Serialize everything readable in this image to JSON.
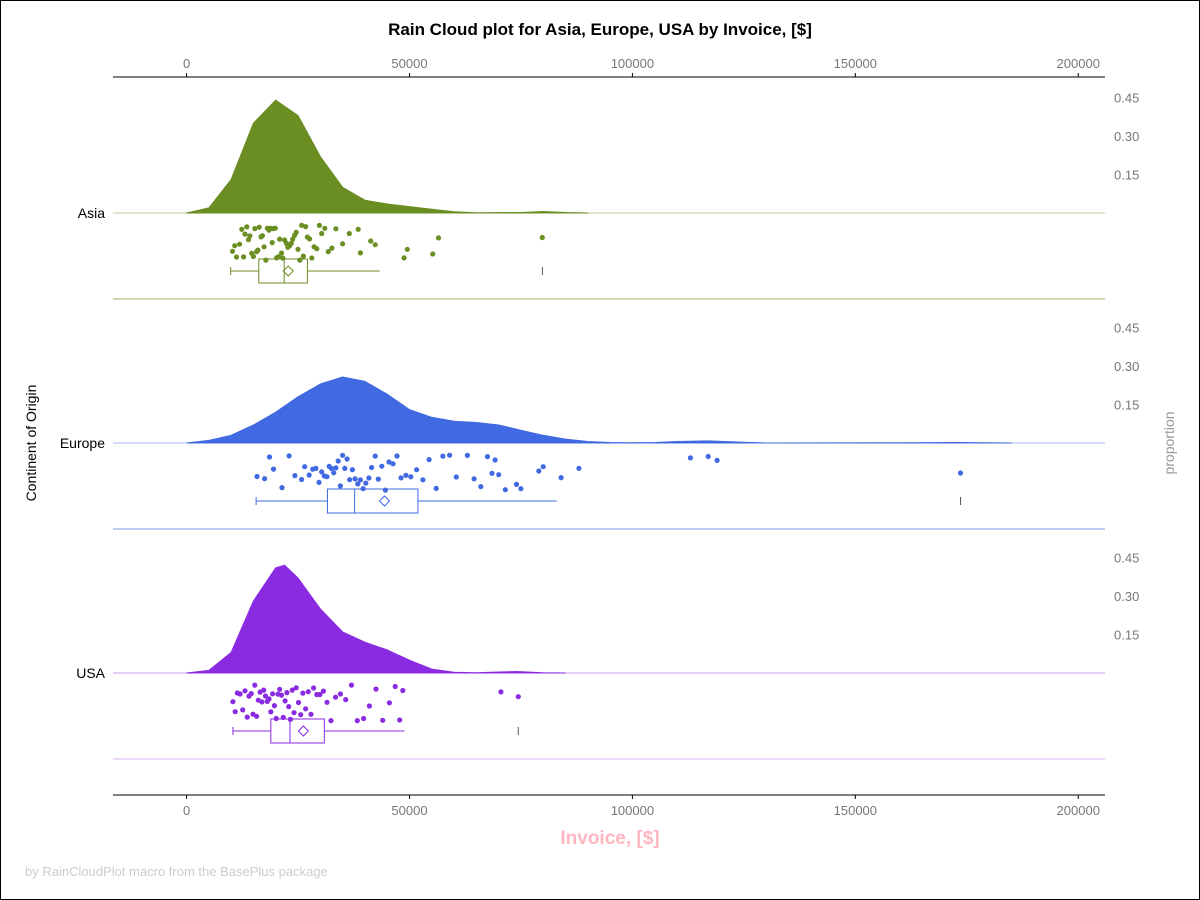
{
  "chart_data": {
    "type": "raincloud",
    "title": "Rain Cloud plot for Asia, Europe, USA by Invoice, [$]",
    "xlabel": "Invoice, [$]",
    "ylabel": "Continent of Origin",
    "y2label": "proportion",
    "footnote": "by RainCloudPlot macro from the BasePlus package",
    "xlim": [
      -16500,
      206000
    ],
    "xticks": [
      0,
      50000,
      100000,
      150000,
      200000
    ],
    "xtick_labels": [
      "0",
      "50000",
      "100000",
      "150000",
      "200000"
    ],
    "density_ticks": [
      0.15,
      0.3,
      0.45
    ],
    "density_tick_labels": [
      "0.15",
      "0.30",
      "0.45"
    ],
    "grid": false,
    "groups": [
      {
        "name": "Asia",
        "color": "#6b8e23",
        "density": [
          [
            0,
            0
          ],
          [
            5000,
            0.02
          ],
          [
            10000,
            0.13
          ],
          [
            15000,
            0.35
          ],
          [
            20000,
            0.44
          ],
          [
            25000,
            0.38
          ],
          [
            30000,
            0.22
          ],
          [
            35000,
            0.1
          ],
          [
            40000,
            0.05
          ],
          [
            45000,
            0.035
          ],
          [
            50000,
            0.025
          ],
          [
            55000,
            0.015
          ],
          [
            60000,
            0.005
          ],
          [
            65000,
            0.001
          ],
          [
            75000,
            0.002
          ],
          [
            80000,
            0.006
          ],
          [
            85000,
            0.002
          ],
          [
            90000,
            0
          ]
        ],
        "box": {
          "min": 9900,
          "q1": 16200,
          "median": 21900,
          "mean": 22800,
          "q3": 27100,
          "whisker_high": 43300,
          "outlier_mark": 79800
        },
        "points": [
          10300,
          10800,
          11200,
          11900,
          12400,
          12800,
          13100,
          13500,
          13900,
          14200,
          14600,
          15000,
          15300,
          15700,
          16000,
          16300,
          16700,
          17000,
          17400,
          17800,
          18100,
          18500,
          18800,
          19200,
          19500,
          19900,
          20200,
          20600,
          20900,
          21300,
          21600,
          22000,
          22400,
          22700,
          23100,
          23500,
          23800,
          24200,
          24600,
          25000,
          25400,
          25800,
          26200,
          26700,
          27100,
          27600,
          28100,
          28600,
          29200,
          29800,
          30300,
          31000,
          31800,
          32600,
          33500,
          35000,
          36500,
          38500,
          39000,
          41300,
          42300,
          48800,
          49500,
          55200,
          56500,
          79800
        ]
      },
      {
        "name": "Europe",
        "color": "#4169e1",
        "density": [
          [
            0,
            0
          ],
          [
            5000,
            0.01
          ],
          [
            10000,
            0.03
          ],
          [
            15000,
            0.07
          ],
          [
            20000,
            0.12
          ],
          [
            25000,
            0.18
          ],
          [
            30000,
            0.23
          ],
          [
            35000,
            0.257
          ],
          [
            40000,
            0.24
          ],
          [
            45000,
            0.19
          ],
          [
            50000,
            0.13
          ],
          [
            55000,
            0.1
          ],
          [
            60000,
            0.085
          ],
          [
            65000,
            0.08
          ],
          [
            70000,
            0.07
          ],
          [
            75000,
            0.05
          ],
          [
            80000,
            0.03
          ],
          [
            85000,
            0.015
          ],
          [
            90000,
            0.006
          ],
          [
            95000,
            0.002
          ],
          [
            100000,
            0.001
          ],
          [
            105000,
            0.002
          ],
          [
            110000,
            0.006
          ],
          [
            117000,
            0.008
          ],
          [
            125000,
            0.003
          ],
          [
            130000,
            0
          ],
          [
            160000,
            0.001
          ],
          [
            173000,
            0.002
          ],
          [
            185000,
            0
          ]
        ],
        "box": {
          "min": 15600,
          "q1": 31600,
          "median": 37700,
          "mean": 44400,
          "q3": 51900,
          "whisker_high": 83000,
          "outlier_mark": 173600
        },
        "points": [
          15800,
          17500,
          18600,
          19500,
          21400,
          23000,
          24300,
          25800,
          26500,
          27500,
          28300,
          29000,
          29700,
          30300,
          30900,
          31500,
          32000,
          32500,
          33000,
          33500,
          34000,
          34500,
          35000,
          35500,
          36000,
          36600,
          37200,
          37800,
          38400,
          39000,
          39600,
          40200,
          40900,
          41500,
          42300,
          43000,
          43800,
          44600,
          45400,
          46300,
          47200,
          48100,
          49200,
          50300,
          51600,
          53000,
          54400,
          56000,
          57500,
          59000,
          60500,
          63000,
          64500,
          66000,
          67500,
          68500,
          69200,
          70000,
          71500,
          74000,
          75000,
          79000,
          80000,
          84000,
          88000,
          113000,
          117000,
          119000,
          173600
        ]
      },
      {
        "name": "USA",
        "color": "#8a2be2",
        "density": [
          [
            0,
            0
          ],
          [
            5000,
            0.01
          ],
          [
            10000,
            0.08
          ],
          [
            15000,
            0.28
          ],
          [
            20000,
            0.41
          ],
          [
            22000,
            0.42
          ],
          [
            25000,
            0.37
          ],
          [
            30000,
            0.25
          ],
          [
            35000,
            0.16
          ],
          [
            40000,
            0.12
          ],
          [
            45000,
            0.09
          ],
          [
            50000,
            0.05
          ],
          [
            55000,
            0.015
          ],
          [
            60000,
            0.003
          ],
          [
            65000,
            0.001
          ],
          [
            70000,
            0.004
          ],
          [
            74000,
            0.006
          ],
          [
            80000,
            0.001
          ],
          [
            85000,
            0
          ]
        ],
        "box": {
          "min": 10400,
          "q1": 18900,
          "median": 23200,
          "mean": 26200,
          "q3": 30900,
          "whisker_high": 48900,
          "outlier_mark": 74400
        },
        "points": [
          10400,
          10900,
          11400,
          12000,
          12600,
          13100,
          13600,
          14000,
          14500,
          14900,
          15300,
          15700,
          16100,
          16500,
          16900,
          17300,
          17700,
          18100,
          18500,
          18900,
          19300,
          19700,
          20100,
          20500,
          20900,
          21300,
          21700,
          22100,
          22500,
          22900,
          23300,
          23700,
          24100,
          24600,
          25100,
          25600,
          26100,
          26700,
          27300,
          27900,
          28500,
          29200,
          29900,
          30700,
          31500,
          32400,
          33400,
          34500,
          35700,
          37000,
          38300,
          39700,
          41000,
          42500,
          44000,
          45500,
          46800,
          47800,
          48500,
          70500,
          74400
        ]
      }
    ]
  }
}
